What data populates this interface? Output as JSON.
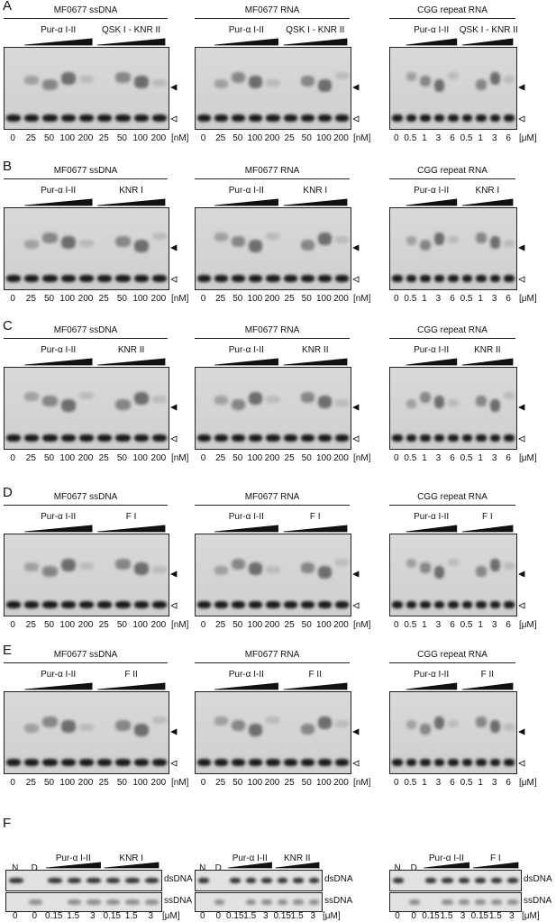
{
  "panels": [
    {
      "letter": "A",
      "gels": [
        {
          "title": "MF0677 ssDNA",
          "groups": [
            "Pur-α I-II",
            "QSK I - KNR II"
          ],
          "lanes": [
            "0",
            "25",
            "50",
            "100",
            "200",
            "25",
            "50",
            "100",
            "200"
          ],
          "unit": "[nM]"
        },
        {
          "title": "MF0677 RNA",
          "groups": [
            "Pur-α I-II",
            "QSK I - KNR II"
          ],
          "lanes": [
            "0",
            "25",
            "50",
            "100",
            "200",
            "25",
            "50",
            "100",
            "200"
          ],
          "unit": "[nM]"
        },
        {
          "title": "CGG repeat RNA",
          "groups": [
            "Pur-α I-II",
            "QSK I - KNR II"
          ],
          "lanes": [
            "0",
            "0.5",
            "1",
            "3",
            "6",
            "0.5",
            "1",
            "3",
            "6"
          ],
          "unit": "[μM]"
        }
      ]
    },
    {
      "letter": "B",
      "gels": [
        {
          "title": "MF0677 ssDNA",
          "groups": [
            "Pur-α I-II",
            "KNR I"
          ],
          "lanes": [
            "0",
            "25",
            "50",
            "100",
            "200",
            "25",
            "50",
            "100",
            "200"
          ],
          "unit": "[nM]"
        },
        {
          "title": "MF0677 RNA",
          "groups": [
            "Pur-α I-II",
            "KNR I"
          ],
          "lanes": [
            "0",
            "25",
            "50",
            "100",
            "200",
            "25",
            "50",
            "100",
            "200"
          ],
          "unit": "[nM]"
        },
        {
          "title": "CGG repeat RNA",
          "groups": [
            "Pur-α I-II",
            "KNR I"
          ],
          "lanes": [
            "0",
            "0.5",
            "1",
            "3",
            "6",
            "0.5",
            "1",
            "3",
            "6"
          ],
          "unit": "[μM]"
        }
      ]
    },
    {
      "letter": "C",
      "gels": [
        {
          "title": "MF0677 ssDNA",
          "groups": [
            "Pur-α I-II",
            "KNR II"
          ],
          "lanes": [
            "0",
            "25",
            "50",
            "100",
            "200",
            "25",
            "50",
            "100",
            "200"
          ],
          "unit": "[nM]"
        },
        {
          "title": "MF0677 RNA",
          "groups": [
            "Pur-α I-II",
            "KNR II"
          ],
          "lanes": [
            "0",
            "25",
            "50",
            "100",
            "200",
            "25",
            "50",
            "100",
            "200"
          ],
          "unit": "[nM]"
        },
        {
          "title": "CGG repeat RNA",
          "groups": [
            "Pur-α I-II",
            "KNR II"
          ],
          "lanes": [
            "0",
            "0.5",
            "1",
            "3",
            "6",
            "0.5",
            "1",
            "3",
            "6"
          ],
          "unit": "[μM]"
        }
      ]
    },
    {
      "letter": "D",
      "gels": [
        {
          "title": "MF0677 ssDNA",
          "groups": [
            "Pur-α I-II",
            "F I"
          ],
          "lanes": [
            "0",
            "25",
            "50",
            "100",
            "200",
            "25",
            "50",
            "100",
            "200"
          ],
          "unit": "[nM]"
        },
        {
          "title": "MF0677 RNA",
          "groups": [
            "Pur-α I-II",
            "F I"
          ],
          "lanes": [
            "0",
            "25",
            "50",
            "100",
            "200",
            "25",
            "50",
            "100",
            "200"
          ],
          "unit": "[nM]"
        },
        {
          "title": "CGG repeat RNA",
          "groups": [
            "Pur-α I-II",
            "F I"
          ],
          "lanes": [
            "0",
            "0.5",
            "1",
            "3",
            "6",
            "0.5",
            "1",
            "3",
            "6"
          ],
          "unit": "[μM]"
        }
      ]
    },
    {
      "letter": "E",
      "gels": [
        {
          "title": "MF0677 ssDNA",
          "groups": [
            "Pur-α I-II",
            "F II"
          ],
          "lanes": [
            "0",
            "25",
            "50",
            "100",
            "200",
            "25",
            "50",
            "100",
            "200"
          ],
          "unit": "[nM]"
        },
        {
          "title": "MF0677 RNA",
          "groups": [
            "Pur-α I-II",
            "F II"
          ],
          "lanes": [
            "0",
            "25",
            "50",
            "100",
            "200",
            "25",
            "50",
            "100",
            "200"
          ],
          "unit": "[nM]"
        },
        {
          "title": "CGG repeat RNA",
          "groups": [
            "Pur-α I-II",
            "F II"
          ],
          "lanes": [
            "0",
            "0.5",
            "1",
            "3",
            "6",
            "0.5",
            "1",
            "3",
            "6"
          ],
          "unit": "[μM]"
        }
      ]
    }
  ],
  "panel_f": {
    "letter": "F",
    "gels": [
      {
        "controls": [
          "N",
          "D"
        ],
        "groups": [
          "Pur-α I-II",
          "KNR I"
        ],
        "lanes": [
          "0",
          "0",
          "0.15",
          "1.5",
          "3",
          "0.15",
          "1.5",
          "3"
        ],
        "unit": "[μM]",
        "bands": [
          "dsDNA",
          "ssDNA"
        ]
      },
      {
        "controls": [
          "N",
          "D"
        ],
        "groups": [
          "Pur-α I-II",
          "KNR II"
        ],
        "lanes": [
          "0",
          "0",
          "0.15",
          "1.5",
          "3",
          "0.15",
          "1.5",
          "3"
        ],
        "unit": "[μM]",
        "bands": [
          "dsDNA",
          "ssDNA"
        ]
      },
      {
        "controls": [
          "N",
          "D"
        ],
        "groups": [
          "Pur-α I-II",
          "F I"
        ],
        "lanes": [
          "0",
          "0",
          "0.15",
          "1.5",
          "3",
          "0.15",
          "1.5",
          "3"
        ],
        "unit": "[μM]",
        "bands": [
          "dsDNA",
          "ssDNA"
        ]
      }
    ]
  }
}
